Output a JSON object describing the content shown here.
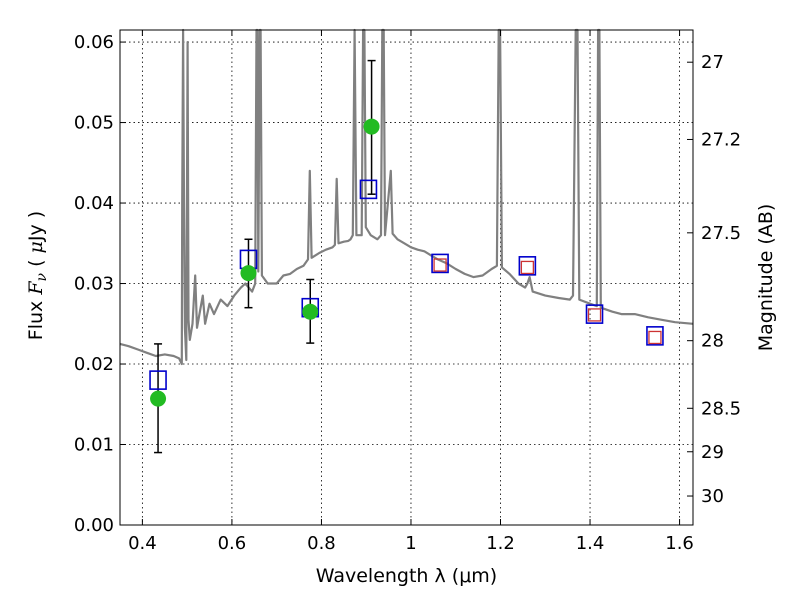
{
  "chart_data": {
    "type": "scatter",
    "title": "",
    "xlabel": "Wavelength  λ (μm)",
    "ylabel_parts": [
      "Flux  ",
      "F",
      "ν",
      "  (  ",
      "μ",
      "Jy  )"
    ],
    "y2label": "Magnitude (AB)",
    "xlim": [
      0.35,
      1.63
    ],
    "ylim": [
      0.0,
      0.0615
    ],
    "grid": true,
    "x_ticks": [
      0.4,
      0.6,
      0.8,
      1.0,
      1.2,
      1.4,
      1.6
    ],
    "x_tick_labels": [
      "0.4",
      "0.6",
      "0.8",
      "1",
      "1.2",
      "1.4",
      "1.6"
    ],
    "y_ticks": [
      0.0,
      0.01,
      0.02,
      0.03,
      0.04,
      0.05,
      0.06
    ],
    "y_tick_labels": [
      "0.00",
      "0.01",
      "0.02",
      "0.03",
      "0.04",
      "0.05",
      "0.06"
    ],
    "y2_ticks": [
      {
        "label": "27",
        "flux": 0.0575
      },
      {
        "label": "27.2",
        "flux": 0.0479
      },
      {
        "label": "27.5",
        "flux": 0.0363
      },
      {
        "label": "28",
        "flux": 0.0229
      },
      {
        "label": "28.5",
        "flux": 0.0145
      },
      {
        "label": "29",
        "flux": 0.0091
      },
      {
        "label": "30",
        "flux": 0.0036
      }
    ],
    "colors": {
      "spectrum": "#808080",
      "observed": "#22bb22",
      "errorbar": "#000000",
      "model_blue": "#0000cc",
      "model_red": "#cc3333"
    },
    "series": [
      {
        "kind": "spectrum",
        "points": [
          [
            0.35,
            0.0225
          ],
          [
            0.37,
            0.0222
          ],
          [
            0.39,
            0.0218
          ],
          [
            0.41,
            0.0214
          ],
          [
            0.43,
            0.021
          ],
          [
            0.45,
            0.0212
          ],
          [
            0.47,
            0.021
          ],
          [
            0.482,
            0.0207
          ],
          [
            0.488,
            0.02
          ],
          [
            0.489,
            0.04
          ],
          [
            0.491,
            0.0615
          ],
          [
            0.493,
            0.04
          ],
          [
            0.495,
            0.0245
          ],
          [
            0.498,
            0.0205
          ],
          [
            0.501,
            0.06
          ],
          [
            0.503,
            0.0255
          ],
          [
            0.506,
            0.023
          ],
          [
            0.512,
            0.025
          ],
          [
            0.518,
            0.031
          ],
          [
            0.522,
            0.0245
          ],
          [
            0.53,
            0.027
          ],
          [
            0.535,
            0.0285
          ],
          [
            0.54,
            0.025
          ],
          [
            0.55,
            0.0275
          ],
          [
            0.56,
            0.0262
          ],
          [
            0.575,
            0.028
          ],
          [
            0.59,
            0.0272
          ],
          [
            0.605,
            0.0285
          ],
          [
            0.62,
            0.0295
          ],
          [
            0.63,
            0.03
          ],
          [
            0.645,
            0.029
          ],
          [
            0.652,
            0.03
          ],
          [
            0.655,
            0.0615
          ],
          [
            0.657,
            0.0615
          ],
          [
            0.659,
            0.0315
          ],
          [
            0.662,
            0.0615
          ],
          [
            0.664,
            0.0615
          ],
          [
            0.667,
            0.031
          ],
          [
            0.68,
            0.03
          ],
          [
            0.7,
            0.03
          ],
          [
            0.715,
            0.031
          ],
          [
            0.73,
            0.0312
          ],
          [
            0.745,
            0.0318
          ],
          [
            0.76,
            0.0322
          ],
          [
            0.77,
            0.033
          ],
          [
            0.774,
            0.044
          ],
          [
            0.778,
            0.0332
          ],
          [
            0.795,
            0.0338
          ],
          [
            0.81,
            0.0342
          ],
          [
            0.825,
            0.0345
          ],
          [
            0.83,
            0.0348
          ],
          [
            0.834,
            0.043
          ],
          [
            0.838,
            0.035
          ],
          [
            0.85,
            0.0352
          ],
          [
            0.86,
            0.0353
          ],
          [
            0.865,
            0.0355
          ],
          [
            0.87,
            0.036
          ],
          [
            0.874,
            0.0615
          ],
          [
            0.878,
            0.036
          ],
          [
            0.89,
            0.036
          ],
          [
            0.893,
            0.0615
          ],
          [
            0.896,
            0.0615
          ],
          [
            0.899,
            0.037
          ],
          [
            0.91,
            0.036
          ],
          [
            0.925,
            0.0355
          ],
          [
            0.933,
            0.036
          ],
          [
            0.936,
            0.0615
          ],
          [
            0.939,
            0.0615
          ],
          [
            0.942,
            0.036
          ],
          [
            0.955,
            0.044
          ],
          [
            0.959,
            0.0362
          ],
          [
            0.97,
            0.0355
          ],
          [
            0.985,
            0.035
          ],
          [
            1.0,
            0.0345
          ],
          [
            1.015,
            0.0342
          ],
          [
            1.03,
            0.034
          ],
          [
            1.045,
            0.0335
          ],
          [
            1.06,
            0.033
          ],
          [
            1.08,
            0.0325
          ],
          [
            1.1,
            0.0318
          ],
          [
            1.12,
            0.0312
          ],
          [
            1.14,
            0.0308
          ],
          [
            1.16,
            0.031
          ],
          [
            1.18,
            0.0318
          ],
          [
            1.192,
            0.0322
          ],
          [
            1.196,
            0.0615
          ],
          [
            1.199,
            0.0615
          ],
          [
            1.203,
            0.032
          ],
          [
            1.22,
            0.0312
          ],
          [
            1.24,
            0.03
          ],
          [
            1.255,
            0.0295
          ],
          [
            1.26,
            0.03
          ],
          [
            1.265,
            0.0308
          ],
          [
            1.272,
            0.029
          ],
          [
            1.3,
            0.0285
          ],
          [
            1.33,
            0.0282
          ],
          [
            1.355,
            0.028
          ],
          [
            1.362,
            0.0285
          ],
          [
            1.368,
            0.0615
          ],
          [
            1.372,
            0.0615
          ],
          [
            1.376,
            0.028
          ],
          [
            1.4,
            0.0275
          ],
          [
            1.415,
            0.0272
          ],
          [
            1.418,
            0.0615
          ],
          [
            1.421,
            0.0615
          ],
          [
            1.424,
            0.027
          ],
          [
            1.45,
            0.0265
          ],
          [
            1.47,
            0.0262
          ],
          [
            1.5,
            0.0262
          ],
          [
            1.53,
            0.0258
          ],
          [
            1.56,
            0.0255
          ],
          [
            1.59,
            0.0252
          ],
          [
            1.63,
            0.025
          ]
        ]
      },
      {
        "kind": "observed",
        "points": [
          {
            "x": 0.435,
            "y": 0.0157,
            "yerr_low": 0.009,
            "yerr_high": 0.0225
          },
          {
            "x": 0.637,
            "y": 0.0313,
            "yerr_low": 0.027,
            "yerr_high": 0.0355
          },
          {
            "x": 0.775,
            "y": 0.0265,
            "yerr_low": 0.0226,
            "yerr_high": 0.0305
          },
          {
            "x": 0.912,
            "y": 0.0495,
            "yerr_low": 0.0411,
            "yerr_high": 0.0577
          }
        ]
      },
      {
        "kind": "model_blue",
        "points": [
          {
            "x": 0.435,
            "y": 0.018
          },
          {
            "x": 0.637,
            "y": 0.033
          },
          {
            "x": 0.775,
            "y": 0.027
          },
          {
            "x": 0.905,
            "y": 0.0417
          },
          {
            "x": 1.065,
            "y": 0.0325
          },
          {
            "x": 1.26,
            "y": 0.0322
          },
          {
            "x": 1.41,
            "y": 0.0262
          },
          {
            "x": 1.545,
            "y": 0.0235
          }
        ]
      },
      {
        "kind": "model_red",
        "points": [
          {
            "x": 1.065,
            "y": 0.0323
          },
          {
            "x": 1.26,
            "y": 0.032
          },
          {
            "x": 1.41,
            "y": 0.0261
          },
          {
            "x": 1.545,
            "y": 0.0233
          }
        ]
      }
    ]
  }
}
